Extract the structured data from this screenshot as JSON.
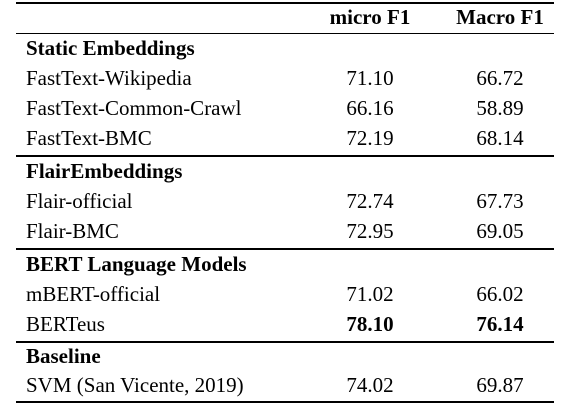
{
  "header": {
    "micro_f1": "micro F1",
    "macro_f1": "Macro F1"
  },
  "sections": [
    {
      "title": "Static Embeddings",
      "rows": [
        {
          "name": "FastText-Wikipedia",
          "micro": "71.10",
          "macro": "66.72"
        },
        {
          "name": "FastText-Common-Crawl",
          "micro": "66.16",
          "macro": "58.89"
        },
        {
          "name": "FastText-BMC",
          "micro": "72.19",
          "macro": "68.14"
        }
      ]
    },
    {
      "title": "FlairEmbeddings",
      "rows": [
        {
          "name": "Flair-official",
          "micro": "72.74",
          "macro": "67.73"
        },
        {
          "name": "Flair-BMC",
          "micro": "72.95",
          "macro": "69.05"
        }
      ]
    },
    {
      "title": "BERT Language Models",
      "rows": [
        {
          "name": "mBERT-official",
          "micro": "71.02",
          "macro": "66.02"
        },
        {
          "name": "BERTeus",
          "micro": "78.10",
          "macro": "76.14"
        }
      ]
    },
    {
      "title": "Baseline",
      "rows": [
        {
          "name": "SVM (San Vicente, 2019)",
          "micro": "74.02",
          "macro": "69.87"
        }
      ]
    }
  ]
}
